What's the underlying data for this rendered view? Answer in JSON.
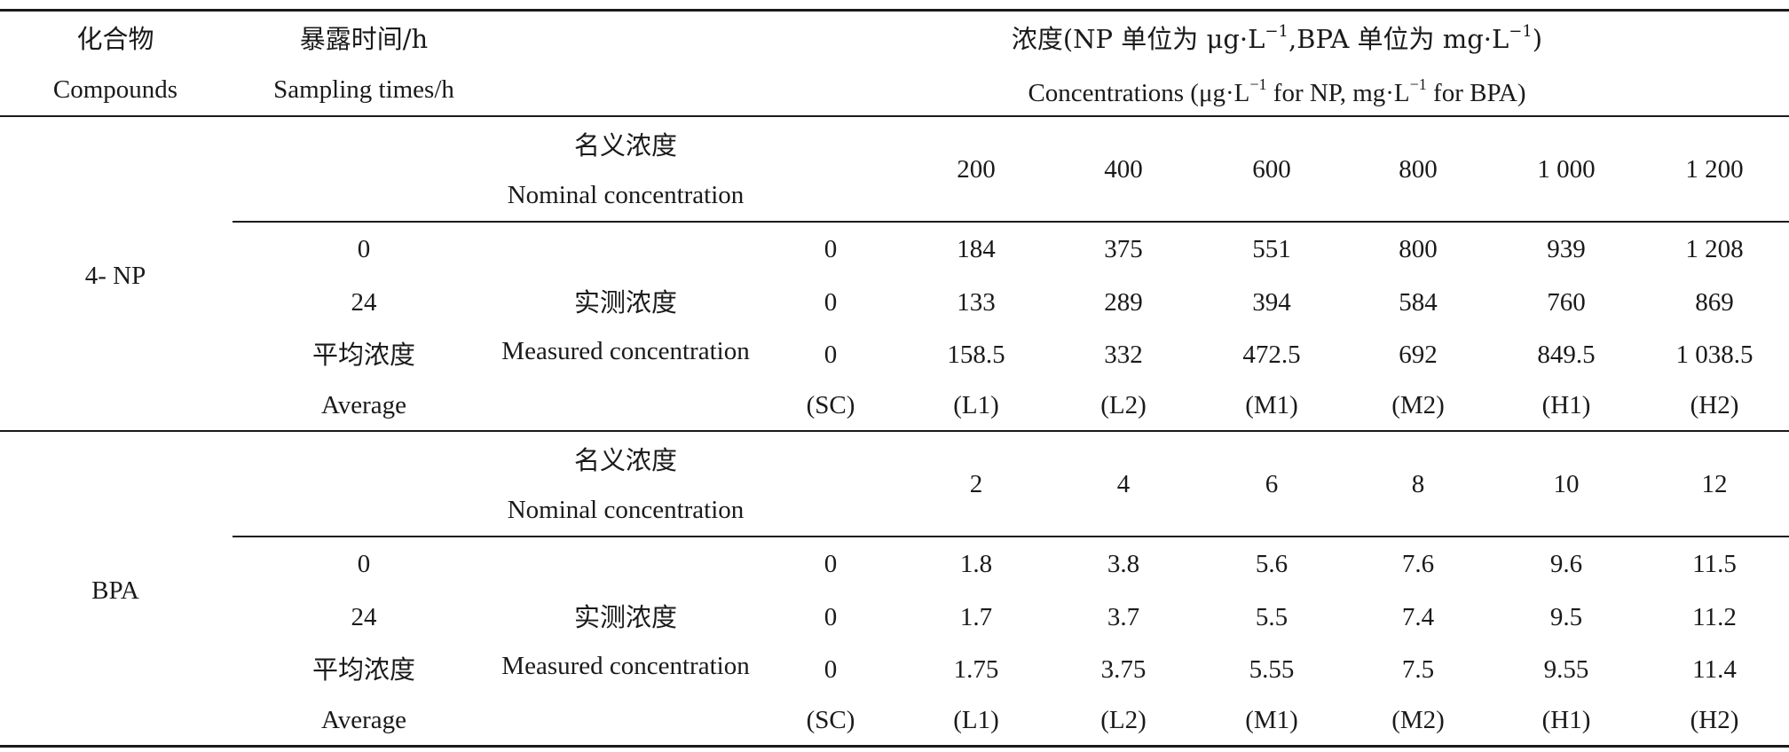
{
  "header": {
    "compounds_cn": "化合物",
    "compounds_en": "Compounds",
    "times_cn": "暴露时间/h",
    "times_en": "Sampling times/h",
    "conc_cn_a": "浓度(NP 单位为 μg·L",
    "conc_cn_sup1": "−1",
    "conc_cn_b": ",BPA 单位为 mg·L",
    "conc_cn_sup2": "−1",
    "conc_cn_c": ")",
    "conc_en_a": "Concentrations (μg·L",
    "conc_en_sup1": "−1",
    "conc_en_b": " for NP, mg·L",
    "conc_en_sup2": "−1",
    "conc_en_c": " for BPA)"
  },
  "np": {
    "compound": "4- NP",
    "nominal_cn": "名义浓度",
    "nominal_en": "Nominal concentration",
    "nominal_values": [
      "200",
      "400",
      "600",
      "800",
      "1 000",
      "1 200"
    ],
    "measured_cn": "实测浓度",
    "measured_en": "Measured concentration",
    "time_labels": [
      "0",
      "24",
      "平均浓度",
      "Average"
    ],
    "rows": [
      [
        "0",
        "184",
        "375",
        "551",
        "800",
        "939",
        "1 208"
      ],
      [
        "0",
        "133",
        "289",
        "394",
        "584",
        "760",
        "869"
      ],
      [
        "0",
        "158.5",
        "332",
        "472.5",
        "692",
        "849.5",
        "1 038.5"
      ],
      [
        "(SC)",
        "(L1)",
        "(L2)",
        "(M1)",
        "(M2)",
        "(H1)",
        "(H2)"
      ]
    ]
  },
  "bpa": {
    "compound": "BPA",
    "nominal_cn": "名义浓度",
    "nominal_en": "Nominal concentration",
    "nominal_values": [
      "2",
      "4",
      "6",
      "8",
      "10",
      "12"
    ],
    "measured_cn": "实测浓度",
    "measured_en": "Measured concentration",
    "time_labels": [
      "0",
      "24",
      "平均浓度",
      "Average"
    ],
    "rows": [
      [
        "0",
        "1.8",
        "3.8",
        "5.6",
        "7.6",
        "9.6",
        "11.5"
      ],
      [
        "0",
        "1.7",
        "3.7",
        "5.5",
        "7.4",
        "9.5",
        "11.2"
      ],
      [
        "0",
        "1.75",
        "3.75",
        "5.55",
        "7.5",
        "9.55",
        "11.4"
      ],
      [
        "(SC)",
        "(L1)",
        "(L2)",
        "(M1)",
        "(M2)",
        "(H1)",
        "(H2)"
      ]
    ]
  }
}
